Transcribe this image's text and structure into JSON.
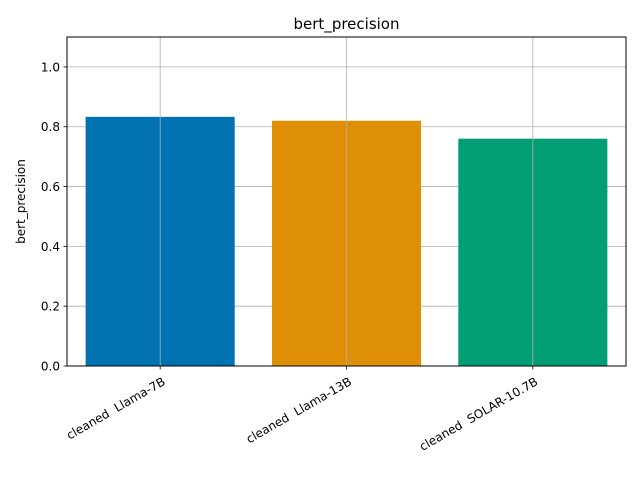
{
  "chart_data": {
    "type": "bar",
    "title": "bert_precision",
    "xlabel": "",
    "ylabel": "bert_precision",
    "categories": [
      "cleaned  Llama-7B",
      "cleaned  Llama-13B",
      "cleaned  SOLAR-10.7B"
    ],
    "values": [
      0.833,
      0.82,
      0.76
    ],
    "colors": [
      "#0072b2",
      "#de8f05",
      "#029e73"
    ],
    "ylim": [
      0,
      1.1
    ],
    "yticks": [
      0.0,
      0.2,
      0.4,
      0.6,
      0.8,
      1.0
    ],
    "ytick_labels": [
      "0.0",
      "0.2",
      "0.4",
      "0.6",
      "0.8",
      "1.0"
    ],
    "grid": true,
    "legend": "none"
  }
}
